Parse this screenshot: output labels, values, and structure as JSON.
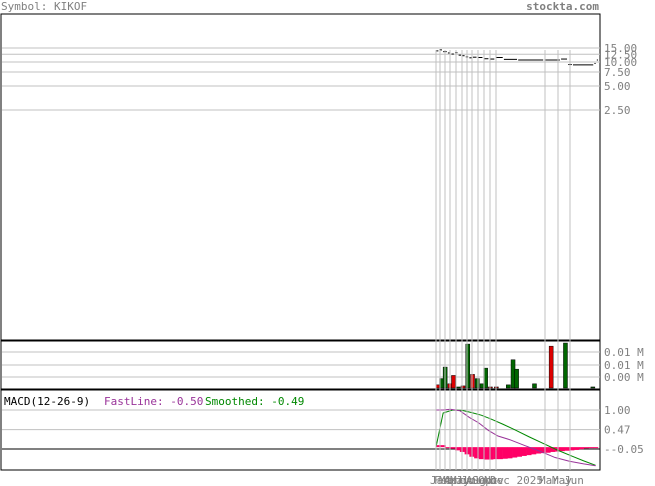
{
  "header": {
    "symbol": "Symbol: KIKOF",
    "site": "stockta.com"
  },
  "macd": {
    "title": "MACD(12-26-9)",
    "fast_label": "FastLine: -0.50",
    "smooth_label": "Smoothed: -0.49",
    "colors": {
      "fast": "#993399",
      "smooth": "#008800",
      "histogram": "#ff0066"
    }
  },
  "chart_data": [
    {
      "type": "line",
      "name": "price",
      "scale": "log",
      "y_ticks": [
        "15.00",
        "12.50",
        "10.00",
        "7.50",
        "5.00",
        "2.50"
      ],
      "y_tick_values": [
        15,
        12.5,
        10,
        7.5,
        5,
        2.5
      ],
      "x_month_labels": [
        "Jan",
        "Feb",
        "Mar",
        "Apr",
        "May",
        "Jun",
        "Jul",
        "Aug",
        "Sep",
        "Oct",
        "Nov",
        "Dec 2025",
        "Mar",
        "May",
        "Jun"
      ],
      "segments": [
        {
          "x0": 0,
          "x1": 2,
          "y": 13.8
        },
        {
          "x0": 3,
          "x1": 5,
          "y": 14.2
        },
        {
          "x0": 6,
          "x1": 9,
          "y": 13.5
        },
        {
          "x0": 10,
          "x1": 12,
          "y": 13.0
        },
        {
          "x0": 13,
          "x1": 15,
          "y": 12.6
        },
        {
          "x0": 16,
          "x1": 18,
          "y": 13.1
        },
        {
          "x0": 19,
          "x1": 21,
          "y": 12.2
        },
        {
          "x0": 22,
          "x1": 24,
          "y": 12.0
        },
        {
          "x0": 25,
          "x1": 27,
          "y": 11.6
        },
        {
          "x0": 28,
          "x1": 30,
          "y": 11.3
        },
        {
          "x0": 31,
          "x1": 34,
          "y": 11.5
        },
        {
          "x0": 35,
          "x1": 39,
          "y": 11.4
        },
        {
          "x0": 40,
          "x1": 44,
          "y": 11.0
        },
        {
          "x0": 45,
          "x1": 49,
          "y": 10.9
        },
        {
          "x0": 50,
          "x1": 56,
          "y": 11.4
        },
        {
          "x0": 57,
          "x1": 68,
          "y": 10.8
        },
        {
          "x0": 69,
          "x1": 90,
          "y": 10.6
        },
        {
          "x0": 91,
          "x1": 104,
          "y": 10.6
        },
        {
          "x0": 105,
          "x1": 110,
          "y": 10.9
        },
        {
          "x0": 111,
          "x1": 114,
          "y": 9.3
        },
        {
          "x0": 115,
          "x1": 132,
          "y": 9.2
        },
        {
          "x0": 133,
          "x1": 134,
          "y": 9.6
        },
        {
          "x0": 135,
          "x1": 136,
          "y": 10.6
        }
      ]
    },
    {
      "type": "bar",
      "name": "volume",
      "y_ticks": [
        "0.01 M",
        "0.01 M",
        "0.00 M"
      ],
      "bars": [
        {
          "x": 0,
          "v": 0.15,
          "c": "red"
        },
        {
          "x": 3,
          "v": 0.45,
          "c": "green"
        },
        {
          "x": 6,
          "v": 1.0,
          "c": "green"
        },
        {
          "x": 10,
          "v": 0.2,
          "c": "red"
        },
        {
          "x": 13,
          "v": 0.6,
          "c": "red"
        },
        {
          "x": 17,
          "v": 0.05,
          "c": "green"
        },
        {
          "x": 21,
          "v": 0.1,
          "c": "red"
        },
        {
          "x": 25,
          "v": 2.1,
          "c": "green"
        },
        {
          "x": 29,
          "v": 0.65,
          "c": "red"
        },
        {
          "x": 33,
          "v": 0.45,
          "c": "green"
        },
        {
          "x": 37,
          "v": 0.2,
          "c": "green"
        },
        {
          "x": 40,
          "v": 0.95,
          "c": "green"
        },
        {
          "x": 44,
          "v": 0.05,
          "c": "red"
        },
        {
          "x": 49,
          "v": 0.05,
          "c": "red"
        },
        {
          "x": 59,
          "v": 0.15,
          "c": "green"
        },
        {
          "x": 63,
          "v": 1.35,
          "c": "green"
        },
        {
          "x": 66,
          "v": 0.9,
          "c": "green"
        },
        {
          "x": 81,
          "v": 0.2,
          "c": "green"
        },
        {
          "x": 95,
          "v": 2.0,
          "c": "red"
        },
        {
          "x": 107,
          "v": 2.15,
          "c": "green"
        },
        {
          "x": 130,
          "v": 0.05,
          "c": "green"
        }
      ]
    },
    {
      "type": "line",
      "name": "macd",
      "y_ticks": [
        "1.00",
        "0.47",
        "-0.05"
      ],
      "y_tick_values": [
        1.0,
        0.47,
        -0.05
      ],
      "fast": [
        {
          "x": 0,
          "y": 1.0
        },
        {
          "x": 6,
          "y": 1.0
        },
        {
          "x": 12,
          "y": 1.02
        },
        {
          "x": 20,
          "y": 0.98
        },
        {
          "x": 28,
          "y": 0.8
        },
        {
          "x": 36,
          "y": 0.65
        },
        {
          "x": 44,
          "y": 0.45
        },
        {
          "x": 52,
          "y": 0.3
        },
        {
          "x": 62,
          "y": 0.2
        },
        {
          "x": 74,
          "y": 0.05
        },
        {
          "x": 88,
          "y": -0.12
        },
        {
          "x": 100,
          "y": -0.28
        },
        {
          "x": 112,
          "y": -0.38
        },
        {
          "x": 124,
          "y": -0.45
        },
        {
          "x": 134,
          "y": -0.5
        }
      ],
      "smooth": [
        {
          "x": 0,
          "y": 0.0
        },
        {
          "x": 6,
          "y": 0.92
        },
        {
          "x": 14,
          "y": 1.0
        },
        {
          "x": 22,
          "y": 0.99
        },
        {
          "x": 30,
          "y": 0.93
        },
        {
          "x": 38,
          "y": 0.86
        },
        {
          "x": 46,
          "y": 0.76
        },
        {
          "x": 56,
          "y": 0.62
        },
        {
          "x": 66,
          "y": 0.47
        },
        {
          "x": 78,
          "y": 0.28
        },
        {
          "x": 90,
          "y": 0.1
        },
        {
          "x": 102,
          "y": -0.08
        },
        {
          "x": 114,
          "y": -0.24
        },
        {
          "x": 124,
          "y": -0.37
        },
        {
          "x": 134,
          "y": -0.49
        }
      ],
      "histogram": [
        {
          "x": 0,
          "v": 0.05
        },
        {
          "x": 4,
          "v": 0.05
        },
        {
          "x": 8,
          "v": 0.0
        },
        {
          "x": 12,
          "v": -0.04
        },
        {
          "x": 16,
          "v": -0.08
        },
        {
          "x": 20,
          "v": -0.12
        },
        {
          "x": 24,
          "v": -0.18
        },
        {
          "x": 28,
          "v": -0.24
        },
        {
          "x": 32,
          "v": -0.28
        },
        {
          "x": 36,
          "v": -0.3
        },
        {
          "x": 40,
          "v": -0.31
        },
        {
          "x": 44,
          "v": -0.31
        },
        {
          "x": 48,
          "v": -0.3
        },
        {
          "x": 52,
          "v": -0.3
        },
        {
          "x": 56,
          "v": -0.29
        },
        {
          "x": 60,
          "v": -0.28
        },
        {
          "x": 64,
          "v": -0.26
        },
        {
          "x": 68,
          "v": -0.24
        },
        {
          "x": 72,
          "v": -0.22
        },
        {
          "x": 76,
          "v": -0.2
        },
        {
          "x": 80,
          "v": -0.18
        },
        {
          "x": 84,
          "v": -0.16
        },
        {
          "x": 88,
          "v": -0.15
        },
        {
          "x": 92,
          "v": -0.14
        },
        {
          "x": 96,
          "v": -0.12
        },
        {
          "x": 100,
          "v": -0.11
        },
        {
          "x": 104,
          "v": -0.1
        },
        {
          "x": 108,
          "v": -0.09
        },
        {
          "x": 112,
          "v": -0.08
        },
        {
          "x": 116,
          "v": -0.07
        },
        {
          "x": 120,
          "v": -0.05
        },
        {
          "x": 124,
          "v": -0.03
        },
        {
          "x": 128,
          "v": -0.02
        },
        {
          "x": 132,
          "v": -0.01
        }
      ]
    }
  ]
}
